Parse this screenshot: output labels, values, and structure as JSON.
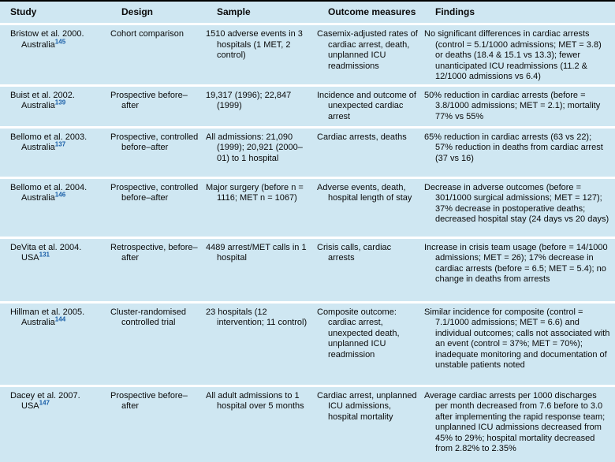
{
  "table": {
    "title_semantic": "Rapid response / medical emergency team studies",
    "colors": {
      "row_background": "#cfe7f2",
      "separator": "#ffffff",
      "top_rule": "#000000",
      "text": "#0a0a0a",
      "reference_superscript": "#1a5fa8"
    },
    "columns": [
      "Study",
      "Design",
      "Sample",
      "Outcome measures",
      "Findings"
    ],
    "rows": [
      {
        "study": "Bristow et al. 2000. Australia",
        "ref": "145",
        "design": "Cohort comparison",
        "sample": "1510 adverse events in 3 hospitals (1 MET, 2 control)",
        "outcome": "Casemix-adjusted rates of cardiac arrest, death, unplanned ICU readmissions",
        "findings": "No significant differences in cardiac arrests (control = 5.1/1000 admissions; MET = 3.8) or deaths (18.4 & 15.1 vs 13.3); fewer unanticipated ICU readmissions (11.2 & 12/1000 admissions vs 6.4)"
      },
      {
        "study": "Buist et al. 2002. Australia",
        "ref": "139",
        "design": "Prospective before–after",
        "sample": "19,317 (1996); 22,847 (1999)",
        "outcome": "Incidence and outcome of unexpected cardiac arrest",
        "findings": "50% reduction in cardiac arrests (before = 3.8/1000 admissions; MET = 2.1); mortality 77% vs 55%"
      },
      {
        "study": "Bellomo et al. 2003. Australia",
        "ref": "137",
        "design": "Prospective, controlled before–after",
        "sample": "All admissions: 21,090 (1999); 20,921 (2000–01) to 1 hospital",
        "outcome": "Cardiac arrests, deaths",
        "findings": "65% reduction in cardiac arrests (63 vs 22); 57% reduction in deaths from cardiac arrest (37 vs 16)"
      },
      {
        "study": "Bellomo et al. 2004. Australia",
        "ref": "146",
        "design": "Prospective, controlled before–after",
        "sample": "Major surgery (before n = 1116; MET n = 1067)",
        "outcome": "Adverse events, death, hospital length of stay",
        "findings": "Decrease in adverse outcomes (before = 301/1000 surgical admissions; MET = 127); 37% decrease in postoperative deaths; decreased hospital stay (24 days vs 20 days)"
      },
      {
        "study": "DeVita et al. 2004. USA",
        "ref": "131",
        "design": "Retrospective, before–after",
        "sample": "4489 arrest/MET calls in 1 hospital",
        "outcome": "Crisis calls, cardiac arrests",
        "findings": "Increase in crisis team usage (before = 14/1000 admissions; MET = 26); 17% decrease in cardiac arrests (before = 6.5; MET = 5.4); no change in deaths from arrests"
      },
      {
        "study": "Hillman et al. 2005. Australia",
        "ref": "144",
        "design": "Cluster-randomised controlled trial",
        "sample": "23 hospitals (12 intervention; 11 control)",
        "outcome": "Composite outcome: cardiac arrest, unexpected death, unplanned ICU readmission",
        "findings": "Similar incidence for composite (control = 7.1/1000 admissions; MET = 6.6) and individual outcomes; calls not associated with an event (control = 37%; MET = 70%); inadequate monitoring and documentation of unstable patients noted"
      },
      {
        "study": "Dacey et al. 2007. USA",
        "ref": "147",
        "design": "Prospective before–after",
        "sample": "All adult admissions to 1 hospital over 5 months",
        "outcome": "Cardiac arrest, unplanned ICU admissions, hospital mortality",
        "findings": "Average cardiac arrests per 1000 discharges per month decreased from 7.6 before to 3.0 after implementing the rapid response team; unplanned ICU admissions decreased from 45% to 29%; hospital mortality decreased from 2.82% to 2.35%"
      }
    ]
  }
}
